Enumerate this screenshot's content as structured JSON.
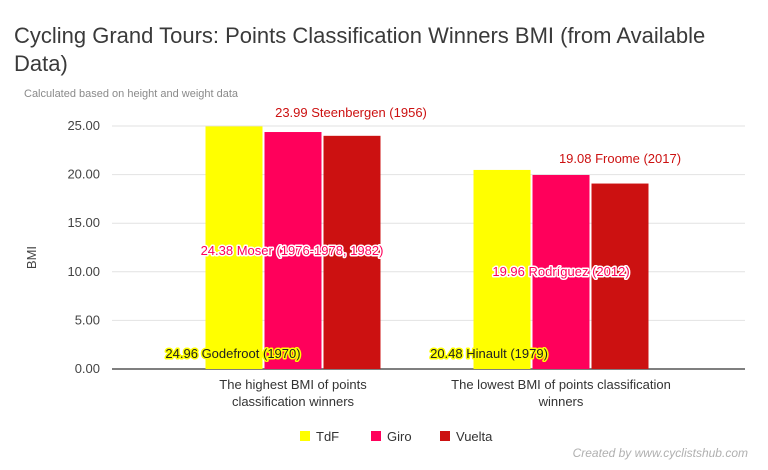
{
  "title": "Cycling Grand Tours: Points Classification Winners BMI (from Available Data)",
  "subtitle": "Calculated based on height and weight data",
  "credit": "Created by www.cyclistshub.com",
  "colors": {
    "tdf": "#ffff00",
    "giro": "#ff005b",
    "vuelta": "#cc1111",
    "grid": "#e2e2e2",
    "axis": "#333333"
  },
  "chart_data": {
    "type": "bar",
    "categories": [
      [
        "The highest BMI of points",
        "classification winners"
      ],
      [
        "The lowest BMI of points classification",
        "winners"
      ]
    ],
    "series": [
      {
        "name": "TdF",
        "values": [
          24.96,
          20.48
        ]
      },
      {
        "name": "Giro",
        "values": [
          24.38,
          19.96
        ]
      },
      {
        "name": "Vuelta",
        "values": [
          23.99,
          19.08
        ]
      }
    ],
    "annotations": [
      [
        "24.96 Godefroot (1970)",
        "20.48 Hinault (1979)"
      ],
      [
        "24.38 Moser (1976-1978, 1982)",
        "19.96 Rodríguez (2012)"
      ],
      [
        "23.99 Steenbergen (1956)",
        "19.08 Froome (2017)"
      ]
    ],
    "ylabel": "BMI",
    "xlabel": "",
    "ylim": [
      0,
      25
    ],
    "yticks": [
      "0.00",
      "5.00",
      "10.00",
      "15.00",
      "20.00",
      "25.00"
    ],
    "grid": true,
    "legend": "bottom"
  }
}
